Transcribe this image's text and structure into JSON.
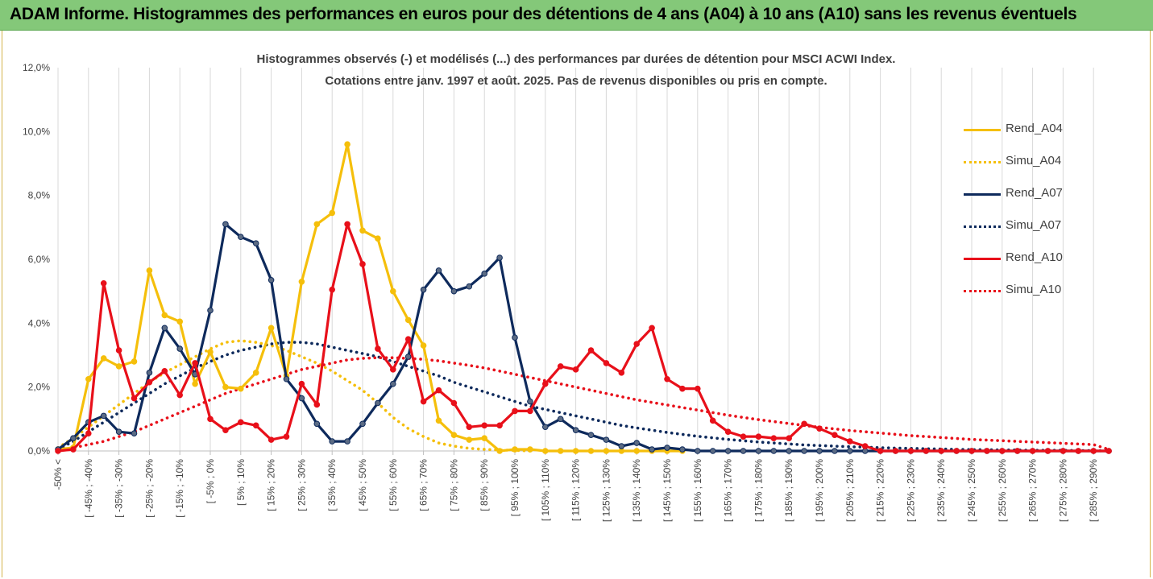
{
  "header": {
    "title": "ADAM Informe. Histogrammes des performances en euros pour des détentions de 4 ans (A04) à 10 ans (A10) sans les revenus éventuels"
  },
  "chart_data": {
    "type": "line",
    "title_line1": "Histogrammes observés (-) et modélisés (...) des performances par durées de détention pour MSCI ACWI Index.",
    "title_line2": "Cotations entre janv. 1997 et août. 2025. Pas de revenus disponibles ou pris en compte.",
    "ylim": [
      0,
      12
    ],
    "y_ticks": [
      "0,0%",
      "2,0%",
      "4,0%",
      "6,0%",
      "8,0%",
      "10,0%",
      "12,0%"
    ],
    "grid": "vertical",
    "legend_position": "right",
    "x_labels": [
      "-50% <",
      "[ -45% ; -40%",
      "[ -35% ; -30%",
      "[ -25% ; -20%",
      "[ -15% ; -10%",
      "[ -5% ; 0%",
      "[ 5% ; 10%",
      "[ 15% ; 20%",
      "[ 25% ; 30%",
      "[ 35% ; 40%",
      "[ 45% ; 50%",
      "[ 55% ; 60%",
      "[ 65% ; 70%",
      "[ 75% ; 80%",
      "[ 85% ; 90%",
      "[ 95% ; 100%",
      "[ 105% ; 110%",
      "[ 115% ; 120%",
      "[ 125% ; 130%",
      "[ 135% ; 140%",
      "[ 145% ; 150%",
      "[ 155% ; 160%",
      "[ 165% ; 170%",
      "[ 175% ; 180%",
      "[ 185% ; 190%",
      "[ 195% ; 200%",
      "[ 205% ; 210%",
      "[ 215% ; 220%",
      "[ 225% ; 230%",
      "[ 235% ; 240%",
      "[ 245% ; 250%",
      "[ 255% ; 260%",
      "[ 265% ; 270%",
      "[ 275% ; 280%",
      "[ 285% ; 290%"
    ],
    "series": [
      {
        "name": "Rend_A04",
        "color": "#f5bf0b",
        "style": "solid",
        "markers": true,
        "values": [
          0.05,
          0.1,
          2.25,
          2.9,
          2.65,
          2.8,
          5.65,
          4.25,
          4.05,
          2.1,
          3.1,
          2.0,
          1.95,
          2.45,
          3.85,
          2.35,
          5.3,
          7.1,
          7.45,
          9.6,
          6.9,
          6.65,
          5.0,
          4.1,
          3.3,
          0.95,
          0.5,
          0.35,
          0.4,
          0.0,
          0.05,
          0.05,
          0.0,
          0.0,
          0.0,
          0.0,
          0.0,
          0.0,
          0.0,
          0.0,
          0.0,
          0.0
        ]
      },
      {
        "name": "Simu_A04",
        "color": "#f5bf0b",
        "style": "dotted",
        "markers": false,
        "values": [
          0.1,
          0.4,
          0.75,
          1.1,
          1.45,
          1.8,
          2.15,
          2.45,
          2.7,
          2.95,
          3.2,
          3.4,
          3.45,
          3.4,
          3.3,
          3.15,
          2.95,
          2.75,
          2.5,
          2.2,
          1.9,
          1.5,
          1.05,
          0.7,
          0.45,
          0.25,
          0.15,
          0.08,
          0.05,
          0.03,
          0.02,
          0.0
        ]
      },
      {
        "name": "Rend_A07",
        "color": "#0e2a5c",
        "style": "solid",
        "markers": true,
        "values": [
          0.05,
          0.4,
          0.9,
          1.1,
          0.6,
          0.55,
          2.45,
          3.85,
          3.2,
          2.4,
          4.4,
          7.1,
          6.7,
          6.5,
          5.35,
          2.25,
          1.65,
          0.85,
          0.3,
          0.3,
          0.85,
          1.5,
          2.1,
          2.95,
          5.05,
          5.65,
          5.0,
          5.15,
          5.55,
          6.05,
          3.55,
          1.55,
          0.75,
          1.0,
          0.65,
          0.5,
          0.35,
          0.15,
          0.25,
          0.05,
          0.1,
          0.05,
          0.0,
          0.0,
          0.0,
          0.0,
          0.0,
          0.0,
          0.0,
          0.0,
          0.0,
          0.0,
          0.0,
          0.0,
          0.0,
          0.0,
          0.0,
          0.0,
          0.0,
          0.0,
          0.0,
          0.0,
          0.0,
          0.0,
          0.0,
          0.0,
          0.0,
          0.0,
          0.0,
          0.0
        ]
      },
      {
        "name": "Simu_A07",
        "color": "#0e2a5c",
        "style": "dotted",
        "markers": false,
        "values": [
          0.05,
          0.3,
          0.6,
          0.9,
          1.2,
          1.5,
          1.8,
          2.1,
          2.35,
          2.6,
          2.8,
          3.0,
          3.15,
          3.25,
          3.35,
          3.4,
          3.4,
          3.35,
          3.25,
          3.15,
          3.05,
          2.95,
          2.8,
          2.65,
          2.5,
          2.35,
          2.15,
          2.0,
          1.85,
          1.7,
          1.55,
          1.4,
          1.3,
          1.2,
          1.1,
          1.0,
          0.9,
          0.8,
          0.72,
          0.65,
          0.58,
          0.52,
          0.46,
          0.41,
          0.36,
          0.32,
          0.28,
          0.25,
          0.22,
          0.19,
          0.17,
          0.15,
          0.13,
          0.12,
          0.1,
          0.09,
          0.08,
          0.07,
          0.06,
          0.05,
          0.04,
          0.04,
          0.03,
          0.03,
          0.02,
          0.02,
          0.02,
          0.01,
          0.01,
          0.0
        ]
      },
      {
        "name": "Rend_A10",
        "color": "#e8101a",
        "style": "solid",
        "markers": true,
        "values": [
          0.0,
          0.05,
          0.55,
          5.25,
          3.15,
          1.65,
          2.15,
          2.5,
          1.75,
          2.75,
          1.0,
          0.65,
          0.9,
          0.8,
          0.35,
          0.45,
          2.1,
          1.45,
          5.05,
          7.1,
          5.85,
          3.2,
          2.55,
          3.5,
          1.55,
          1.9,
          1.5,
          0.75,
          0.8,
          0.8,
          1.25,
          1.25,
          2.1,
          2.65,
          2.55,
          3.15,
          2.75,
          2.45,
          3.35,
          3.85,
          2.25,
          1.95,
          1.95,
          0.95,
          0.6,
          0.45,
          0.45,
          0.4,
          0.4,
          0.85,
          0.7,
          0.5,
          0.3,
          0.15,
          0.0,
          0.0,
          0.0,
          0.0,
          0.0,
          0.0,
          0.0,
          0.0,
          0.0,
          0.0,
          0.0,
          0.0,
          0.0,
          0.0,
          0.0,
          0.0
        ]
      },
      {
        "name": "Simu_A10",
        "color": "#e8101a",
        "style": "dotted",
        "markers": false,
        "values": [
          0.0,
          0.1,
          0.2,
          0.3,
          0.45,
          0.6,
          0.8,
          1.0,
          1.2,
          1.4,
          1.6,
          1.8,
          1.95,
          2.1,
          2.25,
          2.4,
          2.55,
          2.65,
          2.75,
          2.85,
          2.9,
          2.92,
          2.92,
          2.9,
          2.87,
          2.82,
          2.75,
          2.68,
          2.6,
          2.5,
          2.4,
          2.3,
          2.2,
          2.1,
          2.0,
          1.9,
          1.8,
          1.7,
          1.6,
          1.52,
          1.44,
          1.36,
          1.28,
          1.2,
          1.12,
          1.05,
          0.98,
          0.92,
          0.86,
          0.8,
          0.74,
          0.69,
          0.64,
          0.6,
          0.56,
          0.52,
          0.48,
          0.45,
          0.42,
          0.39,
          0.36,
          0.34,
          0.32,
          0.3,
          0.28,
          0.26,
          0.24,
          0.22,
          0.2,
          0.05
        ]
      }
    ]
  }
}
